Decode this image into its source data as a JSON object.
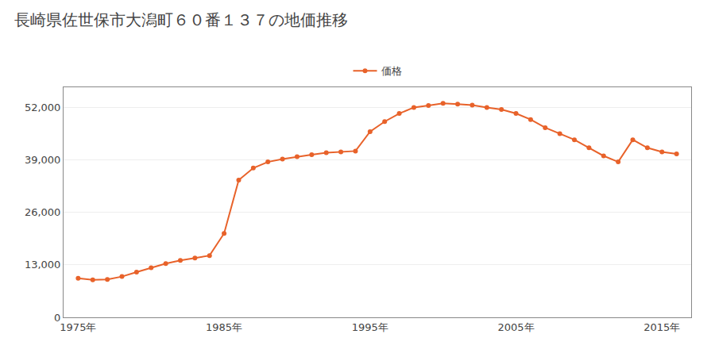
{
  "chart_data": {
    "type": "line",
    "title": "長崎県佐世保市大潟町６０番１３７の地価推移",
    "x": [
      1975,
      1976,
      1977,
      1978,
      1979,
      1980,
      1981,
      1982,
      1983,
      1984,
      1985,
      1986,
      1987,
      1988,
      1989,
      1990,
      1991,
      1992,
      1993,
      1994,
      1995,
      1996,
      1997,
      1998,
      1999,
      2000,
      2001,
      2002,
      2003,
      2004,
      2005,
      2006,
      2007,
      2008,
      2009,
      2010,
      2011,
      2012,
      2013,
      2014,
      2015,
      2016
    ],
    "series": [
      {
        "name": "価格",
        "color": "#E8622A",
        "values": [
          9700,
          9300,
          9400,
          10100,
          11200,
          12300,
          13300,
          14100,
          14700,
          15300,
          20800,
          34000,
          37000,
          38500,
          39200,
          39800,
          40300,
          40800,
          41000,
          41200,
          46000,
          48500,
          50500,
          52000,
          52500,
          53000,
          52800,
          52600,
          52000,
          51500,
          50500,
          49000,
          47000,
          45500,
          44000,
          42000,
          40000,
          38500,
          44000,
          42000,
          41000,
          40500
        ]
      }
    ],
    "xlim": [
      1974,
      2017
    ],
    "xticks": [
      {
        "value": 1975,
        "label": "1975年"
      },
      {
        "value": 1985,
        "label": "1985年"
      },
      {
        "value": 1995,
        "label": "1995年"
      },
      {
        "value": 2005,
        "label": "2005年"
      },
      {
        "value": 2015,
        "label": "2015年"
      }
    ],
    "ylim": [
      0,
      57000
    ],
    "yticks": [
      0,
      {
        "value": 13000,
        "label": "13,000"
      },
      {
        "value": 26000,
        "label": "26,000"
      },
      {
        "value": 39000,
        "label": "39,000"
      },
      {
        "value": 52000,
        "label": "52,000"
      }
    ],
    "grid": "y",
    "legend": "top",
    "marker": "circle"
  }
}
